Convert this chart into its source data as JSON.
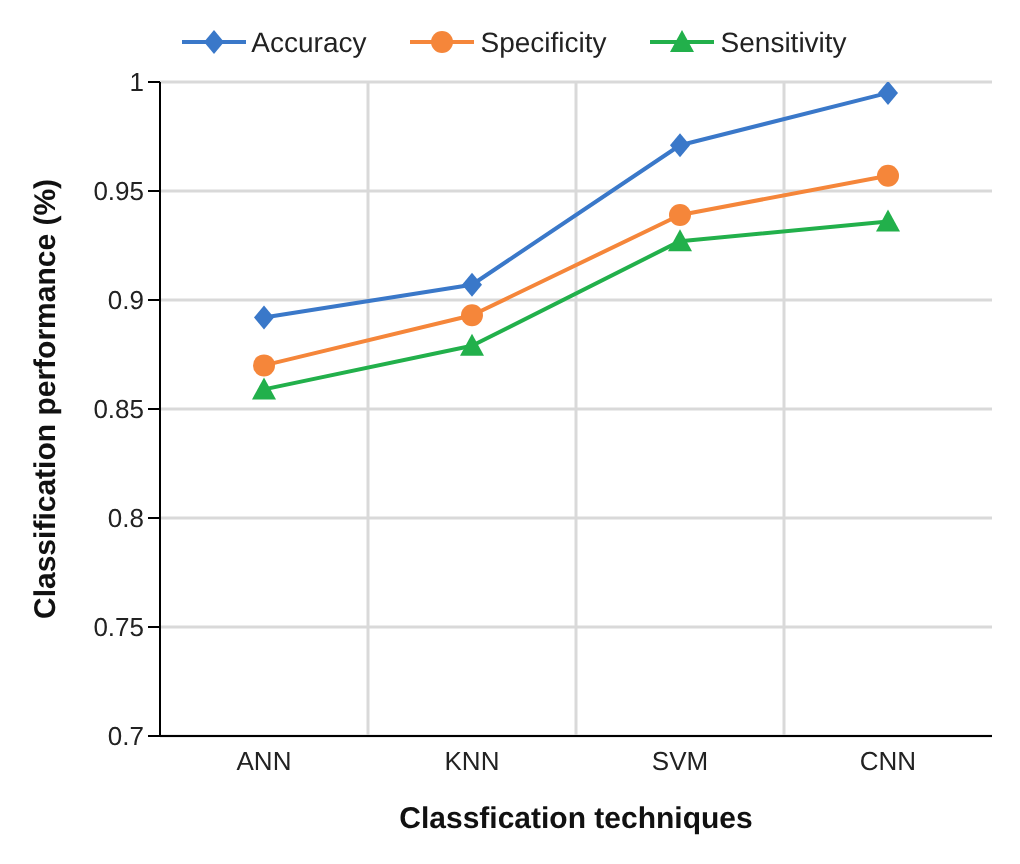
{
  "chart_data": {
    "type": "line",
    "xlabel": "Classfication techniques",
    "ylabel": "Classification performance (%)",
    "categories": [
      "ANN",
      "KNN",
      "SVM",
      "CNN"
    ],
    "series": [
      {
        "name": "Accuracy",
        "color": "#3a78c9",
        "marker": "diamond",
        "values": [
          0.892,
          0.907,
          0.971,
          0.995
        ]
      },
      {
        "name": "Specificity",
        "color": "#f5863a",
        "marker": "circle",
        "values": [
          0.87,
          0.893,
          0.939,
          0.957
        ]
      },
      {
        "name": "Sensitivity",
        "color": "#22b04b",
        "marker": "triangle",
        "values": [
          0.859,
          0.879,
          0.927,
          0.936
        ]
      }
    ],
    "ylim": [
      0.7,
      1
    ],
    "yticks": [
      0.7,
      0.75,
      0.8,
      0.85,
      0.9,
      0.95,
      1
    ],
    "grid": true,
    "legend": "top"
  }
}
